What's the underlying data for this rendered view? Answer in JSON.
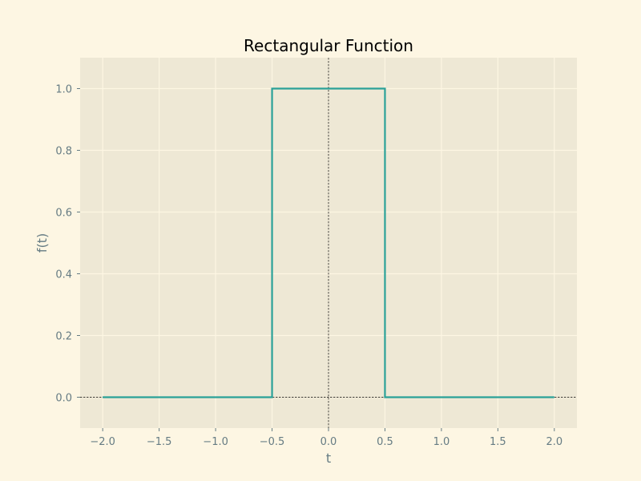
{
  "chart_data": {
    "type": "line",
    "title": "Rectangular Function",
    "xlabel": "t",
    "ylabel": "f(t)",
    "xlim": [
      -2.2,
      2.2
    ],
    "ylim": [
      -0.1,
      1.1
    ],
    "xticks": [
      -2.0,
      -1.5,
      -1.0,
      -0.5,
      0.0,
      0.5,
      1.0,
      1.5,
      2.0
    ],
    "yticks": [
      0.0,
      0.2,
      0.4,
      0.6,
      0.8,
      1.0
    ],
    "xtick_labels": [
      "−2.0",
      "−1.5",
      "−1.0",
      "−0.5",
      "0.0",
      "0.5",
      "1.0",
      "1.5",
      "2.0"
    ],
    "ytick_labels": [
      "0.0",
      "0.2",
      "0.4",
      "0.6",
      "0.8",
      "1.0"
    ],
    "grid": true,
    "reference_lines": [
      {
        "orientation": "horizontal",
        "value": 0.0,
        "style": "dashed",
        "color": "#000000"
      },
      {
        "orientation": "vertical",
        "value": 0.0,
        "style": "dashed",
        "color": "#000000"
      }
    ],
    "series": [
      {
        "color": "#2aa198",
        "x": [
          -2.0,
          -0.5,
          -0.5,
          0.5,
          0.5,
          2.0
        ],
        "y": [
          0.0,
          0.0,
          1.0,
          1.0,
          0.0,
          0.0
        ]
      }
    ]
  },
  "colors": {
    "figure_background": "#fdf6e3",
    "plot_background": "#eee8d5",
    "grid": "#fdf6e3",
    "text": "#657b83",
    "title": "#000000"
  }
}
